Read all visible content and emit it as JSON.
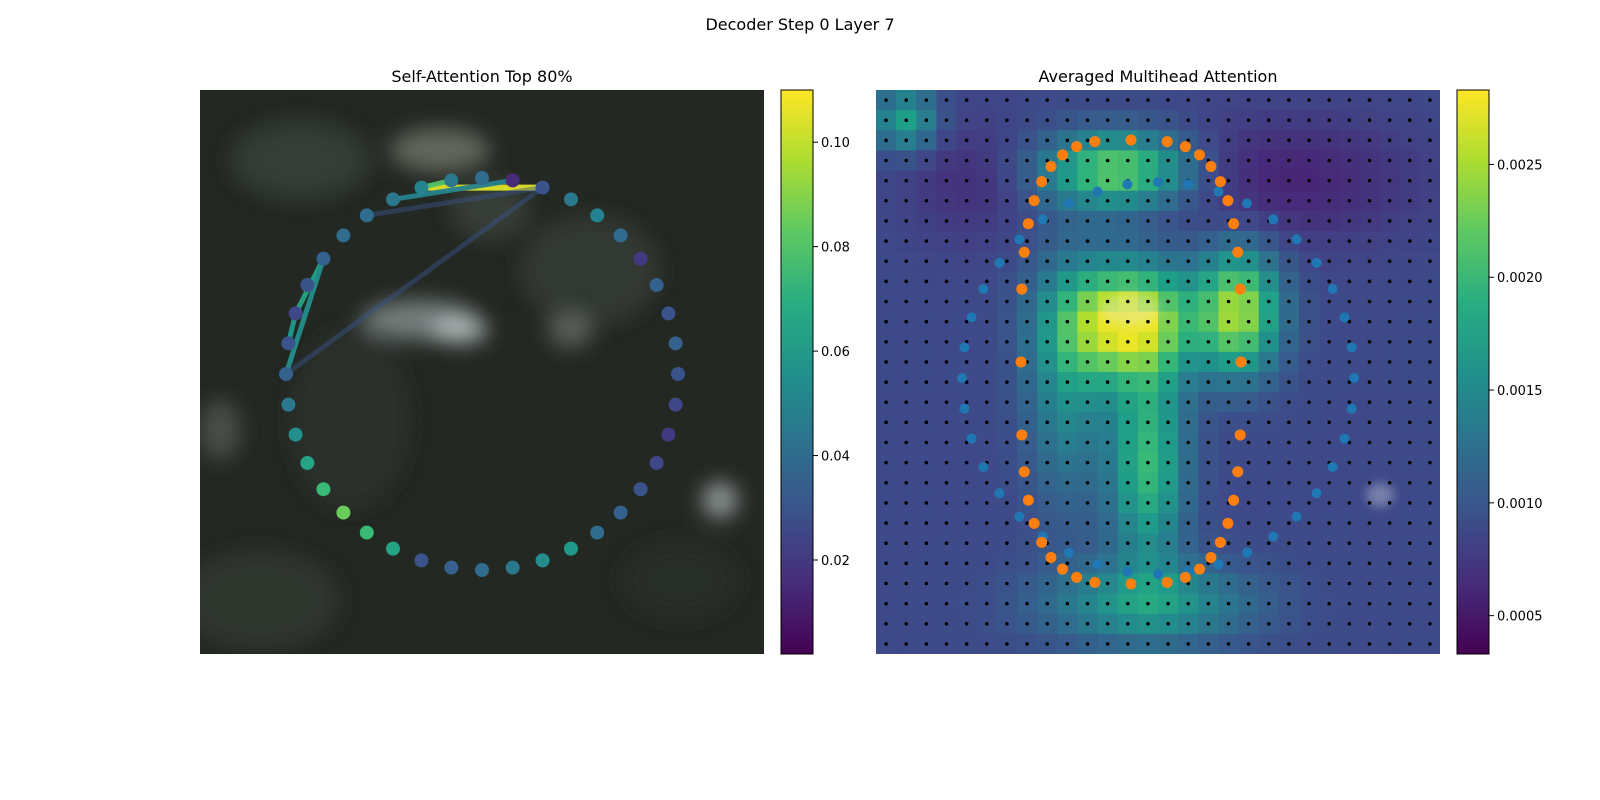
{
  "figure": {
    "suptitle": "Decoder Step 0 Layer 7"
  },
  "chart_data": [
    {
      "type": "scatter",
      "title": "Self-Attention Top 80%",
      "background": "blurred grayscale endoscopy-style image (dark)",
      "colormap": "viridis",
      "colorbar": {
        "vmin": 0.002,
        "vmax": 0.11,
        "ticks": [
          "0.02",
          "0.04",
          "0.06",
          "0.08",
          "0.10"
        ],
        "tick_values": [
          0.02,
          0.04,
          0.06,
          0.08,
          0.1
        ]
      },
      "points": {
        "count": 40,
        "shape": "ellipse",
        "values": [
          0.04,
          0.045,
          0.05,
          0.045,
          0.04,
          0.04,
          0.035,
          0.03,
          0.025,
          0.03,
          0.035,
          0.045,
          0.055,
          0.065,
          0.075,
          0.085,
          0.075,
          0.065,
          0.03,
          0.035,
          0.04,
          0.045,
          0.055,
          0.06,
          0.04,
          0.035,
          0.03,
          0.025,
          0.02,
          0.025,
          0.03,
          0.035,
          0.03,
          0.035,
          0.02,
          0.04,
          0.05,
          0.045,
          0.03,
          0.015
        ]
      },
      "edges": [
        {
          "from": 38,
          "to": 2,
          "value": 0.105
        },
        {
          "from": 39,
          "to": 3,
          "value": 0.05
        },
        {
          "from": 38,
          "to": 4,
          "value": 0.03
        },
        {
          "from": 2,
          "to": 1,
          "value": 0.08
        },
        {
          "from": 6,
          "to": 8,
          "value": 0.065
        },
        {
          "from": 8,
          "to": 9,
          "value": 0.06
        },
        {
          "from": 6,
          "to": 10,
          "value": 0.055
        },
        {
          "from": 10,
          "to": 38,
          "value": 0.03
        }
      ]
    },
    {
      "type": "heatmap",
      "title": "Averaged Multihead Attention",
      "colormap": "viridis",
      "grid": {
        "rows": 28,
        "cols": 28
      },
      "colorbar": {
        "vmin": 0.00033,
        "vmax": 0.00283,
        "ticks": [
          "0.0005",
          "0.0010",
          "0.0015",
          "0.0020",
          "0.0025"
        ],
        "tick_values": [
          0.0005,
          0.001,
          0.0015,
          0.002,
          0.0025
        ]
      },
      "overlays": [
        {
          "name": "",
          "color": "#1f77b4",
          "marker": "dot",
          "shape": "ellipse",
          "count": 40
        },
        {
          "name": "",
          "color": "#ff7f0e",
          "marker": "dot",
          "shape": "rounded rectangle",
          "count": 40
        }
      ],
      "grid_markers": {
        "color": "#000000",
        "marker": "small dot"
      }
    }
  ]
}
